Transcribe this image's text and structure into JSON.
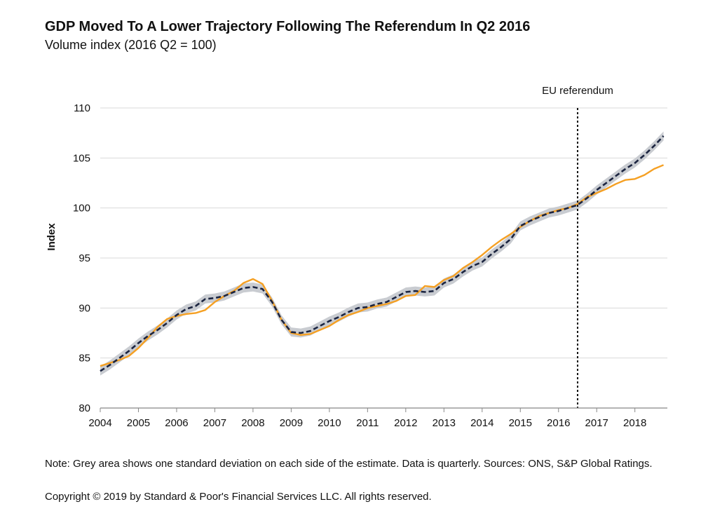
{
  "title": "GDP Moved To A Lower Trajectory Following The Referendum In Q2 2016",
  "subtitle": "Volume index (2016 Q2 = 100)",
  "note": "Note: Grey area shows one standard deviation on each side of the estimate. Data is quarterly. Sources: ONS, S&P Global Ratings.",
  "copyright": "Copyright © 2019 by Standard & Poor's Financial Services LLC. All rights reserved.",
  "chart_data": {
    "type": "line",
    "ylabel": "Index",
    "ylim": [
      80,
      110
    ],
    "yticks": [
      80,
      85,
      90,
      95,
      100,
      105,
      110
    ],
    "xlim": [
      2004,
      2018.85
    ],
    "xticks": [
      2004,
      2005,
      2006,
      2007,
      2008,
      2009,
      2010,
      2011,
      2012,
      2013,
      2014,
      2015,
      2016,
      2017,
      2018
    ],
    "grid": "horizontal",
    "annotation": {
      "label": "EU referendum",
      "x": 2016.5
    },
    "colors": {
      "actual": "#f5a023",
      "estimate": "#1b2440",
      "band": "#c9ccd1",
      "grid": "#d9d9d9",
      "axis": "#888888"
    },
    "band_sd": 0.45,
    "series": [
      {
        "key": "actual",
        "x": [
          2004.0,
          2004.25,
          2004.5,
          2004.75,
          2005.0,
          2005.25,
          2005.5,
          2005.75,
          2006.0,
          2006.25,
          2006.5,
          2006.75,
          2007.0,
          2007.25,
          2007.5,
          2007.75,
          2008.0,
          2008.25,
          2008.5,
          2008.75,
          2009.0,
          2009.25,
          2009.5,
          2009.75,
          2010.0,
          2010.25,
          2010.5,
          2010.75,
          2011.0,
          2011.25,
          2011.5,
          2011.75,
          2012.0,
          2012.25,
          2012.5,
          2012.75,
          2013.0,
          2013.25,
          2013.5,
          2013.75,
          2014.0,
          2014.25,
          2014.5,
          2014.75,
          2015.0,
          2015.25,
          2015.5,
          2015.75,
          2016.0,
          2016.25,
          2016.5,
          2016.75,
          2017.0,
          2017.25,
          2017.5,
          2017.75,
          2018.0,
          2018.25,
          2018.5,
          2018.75
        ],
        "values": [
          84.2,
          84.5,
          84.8,
          85.2,
          86.0,
          87.0,
          88.1,
          88.9,
          89.2,
          89.4,
          89.5,
          89.8,
          90.6,
          91.2,
          91.7,
          92.5,
          92.9,
          92.4,
          90.7,
          88.8,
          87.5,
          87.3,
          87.4,
          87.8,
          88.2,
          88.8,
          89.3,
          89.6,
          90.0,
          90.2,
          90.4,
          90.7,
          91.2,
          91.3,
          92.2,
          92.1,
          92.8,
          93.2,
          94.0,
          94.6,
          95.3,
          96.1,
          96.8,
          97.4,
          98.1,
          98.7,
          99.2,
          99.5,
          99.8,
          100.0,
          100.4,
          101.1,
          101.5,
          101.9,
          102.4,
          102.8,
          102.9,
          103.3,
          103.9,
          104.3
        ]
      },
      {
        "key": "estimate",
        "x": [
          2004.0,
          2004.25,
          2004.5,
          2004.75,
          2005.0,
          2005.25,
          2005.5,
          2005.75,
          2006.0,
          2006.25,
          2006.5,
          2006.75,
          2007.0,
          2007.25,
          2007.5,
          2007.75,
          2008.0,
          2008.25,
          2008.5,
          2008.75,
          2009.0,
          2009.25,
          2009.5,
          2009.75,
          2010.0,
          2010.25,
          2010.5,
          2010.75,
          2011.0,
          2011.25,
          2011.5,
          2011.75,
          2012.0,
          2012.25,
          2012.5,
          2012.75,
          2013.0,
          2013.25,
          2013.5,
          2013.75,
          2014.0,
          2014.25,
          2014.5,
          2014.75,
          2015.0,
          2015.25,
          2015.5,
          2015.75,
          2016.0,
          2016.25,
          2016.5,
          2016.75,
          2017.0,
          2017.25,
          2017.5,
          2017.75,
          2018.0,
          2018.25,
          2018.5,
          2018.75
        ],
        "values": [
          83.7,
          84.3,
          85.0,
          85.7,
          86.5,
          87.2,
          87.8,
          88.5,
          89.3,
          89.9,
          90.2,
          90.9,
          91.0,
          91.2,
          91.6,
          92.0,
          92.1,
          91.9,
          90.6,
          88.8,
          87.6,
          87.5,
          87.7,
          88.2,
          88.7,
          89.1,
          89.6,
          90.0,
          90.1,
          90.4,
          90.6,
          91.1,
          91.6,
          91.7,
          91.6,
          91.7,
          92.5,
          92.9,
          93.6,
          94.2,
          94.6,
          95.4,
          96.1,
          96.9,
          98.2,
          98.7,
          99.1,
          99.5,
          99.7,
          100.0,
          100.3,
          101.0,
          101.8,
          102.5,
          103.2,
          103.9,
          104.5,
          105.3,
          106.2,
          107.2
        ]
      }
    ]
  }
}
